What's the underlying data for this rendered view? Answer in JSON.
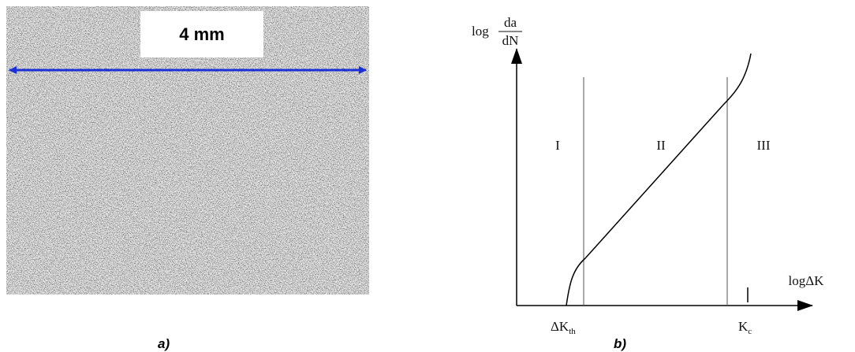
{
  "panel_a": {
    "scale_label": "4 mm",
    "caption": "a)"
  },
  "panel_b": {
    "y_label": {
      "prefix": "log",
      "numerator": "da",
      "denominator": "dN"
    },
    "x_label": "logΔK",
    "regions": [
      "I",
      "II",
      "III"
    ],
    "x_marks": [
      {
        "main": "ΔK",
        "sub": "th"
      },
      {
        "main": "K",
        "sub": "c"
      }
    ],
    "caption": "b)"
  }
}
